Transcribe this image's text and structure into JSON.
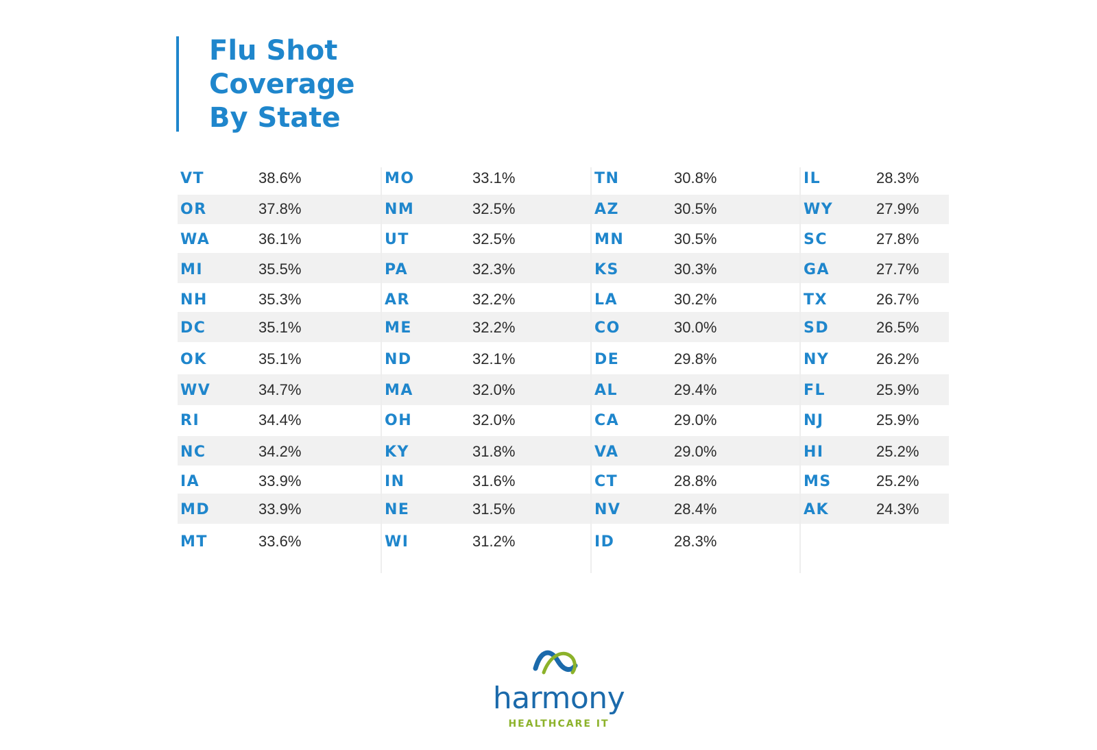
{
  "title": {
    "lines": [
      "Flu Shot",
      "Coverage",
      "By State"
    ]
  },
  "columns": [
    {
      "rows": [
        {
          "state": "VT",
          "pct": "38.6%"
        },
        {
          "state": "OR",
          "pct": "37.8%"
        },
        {
          "state": "WA",
          "pct": "36.1%"
        },
        {
          "state": "MI",
          "pct": "35.5%"
        },
        {
          "state": "NH",
          "pct": "35.3%"
        },
        {
          "state": "DC",
          "pct": "35.1%"
        },
        {
          "state": "OK",
          "pct": "35.1%"
        },
        {
          "state": "WV",
          "pct": "34.7%"
        },
        {
          "state": "RI",
          "pct": "34.4%"
        },
        {
          "state": "NC",
          "pct": "34.2%"
        },
        {
          "state": "IA",
          "pct": "33.9%"
        },
        {
          "state": "MD",
          "pct": "33.9%"
        },
        {
          "state": "MT",
          "pct": "33.6%"
        }
      ]
    },
    {
      "rows": [
        {
          "state": "MO",
          "pct": "33.1%"
        },
        {
          "state": "NM",
          "pct": "32.5%"
        },
        {
          "state": "UT",
          "pct": "32.5%"
        },
        {
          "state": "PA",
          "pct": "32.3%"
        },
        {
          "state": "AR",
          "pct": "32.2%"
        },
        {
          "state": "ME",
          "pct": "32.2%"
        },
        {
          "state": "ND",
          "pct": "32.1%"
        },
        {
          "state": "MA",
          "pct": "32.0%"
        },
        {
          "state": "OH",
          "pct": "32.0%"
        },
        {
          "state": "KY",
          "pct": "31.8%"
        },
        {
          "state": "IN",
          "pct": "31.6%"
        },
        {
          "state": "NE",
          "pct": "31.5%"
        },
        {
          "state": "WI",
          "pct": "31.2%"
        }
      ]
    },
    {
      "rows": [
        {
          "state": "TN",
          "pct": "30.8%"
        },
        {
          "state": "AZ",
          "pct": "30.5%"
        },
        {
          "state": "MN",
          "pct": "30.5%"
        },
        {
          "state": "KS",
          "pct": "30.3%"
        },
        {
          "state": "LA",
          "pct": "30.2%"
        },
        {
          "state": "CO",
          "pct": "30.0%"
        },
        {
          "state": "DE",
          "pct": "29.8%"
        },
        {
          "state": "AL",
          "pct": "29.4%"
        },
        {
          "state": "CA",
          "pct": "29.0%"
        },
        {
          "state": "VA",
          "pct": "29.0%"
        },
        {
          "state": "CT",
          "pct": "28.8%"
        },
        {
          "state": "NV",
          "pct": "28.4%"
        },
        {
          "state": "ID",
          "pct": "28.3%"
        }
      ]
    },
    {
      "rows": [
        {
          "state": "IL",
          "pct": "28.3%"
        },
        {
          "state": "WY",
          "pct": "27.9%"
        },
        {
          "state": "SC",
          "pct": "27.8%"
        },
        {
          "state": "GA",
          "pct": "27.7%"
        },
        {
          "state": "TX",
          "pct": "26.7%"
        },
        {
          "state": "SD",
          "pct": "26.5%"
        },
        {
          "state": "NY",
          "pct": "26.2%"
        },
        {
          "state": "FL",
          "pct": "25.9%"
        },
        {
          "state": "NJ",
          "pct": "25.9%"
        },
        {
          "state": "HI",
          "pct": "25.2%"
        },
        {
          "state": "MS",
          "pct": "25.2%"
        },
        {
          "state": "AK",
          "pct": "24.3%"
        }
      ]
    }
  ],
  "logo": {
    "wordmark": "harmony",
    "tagline": "HEALTHCARE IT"
  },
  "colors": {
    "accent": "#1f86cc",
    "band": "#f1f1f1",
    "text": "#2b2b2b",
    "logo_blue": "#1b6aab",
    "logo_green": "#8cb22a"
  }
}
